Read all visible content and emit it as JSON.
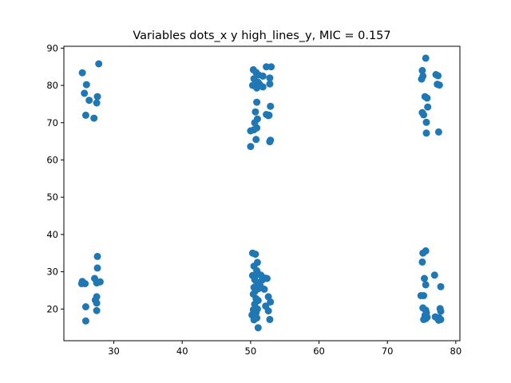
{
  "chart_data": {
    "type": "scatter",
    "title": "Variables dots_x y high_lines_y, MIC = 0.157",
    "xlabel": "",
    "ylabel": "",
    "xlim": [
      22.7,
      80.6
    ],
    "ylim": [
      11.5,
      90.5
    ],
    "xticks": [
      30,
      40,
      50,
      60,
      70,
      80
    ],
    "yticks": [
      20,
      30,
      40,
      50,
      60,
      70,
      80,
      90
    ],
    "grid": false,
    "color": "#1f77b4",
    "series": [
      {
        "x": [
          27.8,
          25.4,
          26.0,
          25.7,
          27.6,
          27.5,
          26.4,
          25.9,
          27.1,
          27.6,
          27.6,
          25.4,
          25.8,
          27.5,
          28.0,
          27.2,
          25.3,
          27.5,
          27.3,
          27.5,
          25.9,
          27.5,
          25.9,
          52.3,
          53.0,
          50.4,
          50.8,
          51.2,
          51.8,
          52.8,
          50.5,
          51.1,
          51.3,
          52.8,
          50.3,
          50.9,
          51.8,
          52.9,
          50.9,
          52.3,
          52.6,
          50.7,
          51.0,
          52.7,
          50.6,
          50.9,
          50.0,
          50.5,
          50.8,
          52.9,
          52.8,
          50.0,
          50.3,
          50.7,
          51.0,
          50.5,
          50.9,
          51.2,
          51.5,
          50.3,
          52.1,
          50.6,
          51.7,
          52.4,
          50.9,
          51.0,
          51.4,
          50.5,
          51.2,
          52.0,
          50.7,
          50.4,
          52.6,
          50.8,
          51.1,
          52.9,
          50.6,
          52.2,
          51.0,
          50.4,
          50.8,
          52.6,
          50.2,
          50.9,
          50.5,
          52.8,
          51.1,
          75.6,
          75.1,
          75.2,
          77.1,
          77.3,
          75.0,
          77.6,
          77.4,
          75.5,
          75.8,
          75.9,
          75.1,
          75.3,
          75.7,
          77.5,
          75.7,
          75.6,
          75.2,
          75.1,
          76.9,
          75.4,
          75.6,
          77.8,
          74.9,
          75.3,
          75.6,
          77.7,
          75.2,
          77.8,
          75.7,
          75.5,
          75.8,
          75.3,
          77.2,
          77.6,
          77.5,
          77.8,
          75.6,
          77.0
        ],
        "y": [
          85.8,
          83.4,
          80.2,
          77.9,
          77.0,
          75.3,
          76.0,
          72.0,
          71.2,
          34.1,
          31.0,
          27.4,
          26.8,
          27.0,
          27.3,
          28.2,
          26.8,
          23.3,
          22.4,
          21.6,
          20.6,
          19.6,
          16.8,
          85.0,
          85.0,
          84.2,
          83.5,
          82.8,
          82.5,
          82.0,
          81.8,
          80.8,
          80.3,
          80.4,
          80.0,
          79.3,
          79.6,
          74.4,
          75.5,
          72.2,
          71.9,
          72.9,
          71.0,
          72.0,
          70.0,
          68.6,
          67.8,
          68.1,
          65.5,
          65.3,
          64.9,
          63.6,
          35.0,
          34.7,
          32.5,
          31.5,
          30.3,
          29.3,
          29.1,
          29.0,
          28.3,
          27.9,
          27.8,
          28.2,
          27.2,
          26.6,
          26.2,
          25.8,
          25.5,
          25.3,
          24.9,
          24.0,
          23.3,
          22.8,
          22.3,
          21.9,
          21.3,
          20.8,
          20.0,
          19.8,
          19.0,
          19.5,
          18.4,
          17.6,
          17.1,
          17.2,
          15.0,
          87.3,
          84.0,
          82.5,
          82.9,
          80.3,
          81.7,
          80.1,
          82.6,
          77.0,
          76.6,
          74.2,
          72.7,
          72.1,
          70.1,
          67.5,
          67.2,
          35.6,
          35.0,
          32.6,
          29.1,
          28.2,
          26.5,
          26.0,
          23.6,
          23.6,
          19.7,
          20.1,
          20.3,
          19.4,
          19.0,
          18.3,
          17.8,
          17.2,
          17.7,
          17.6,
          17.0,
          17.2,
          17.4,
          17.9
        ]
      }
    ]
  }
}
